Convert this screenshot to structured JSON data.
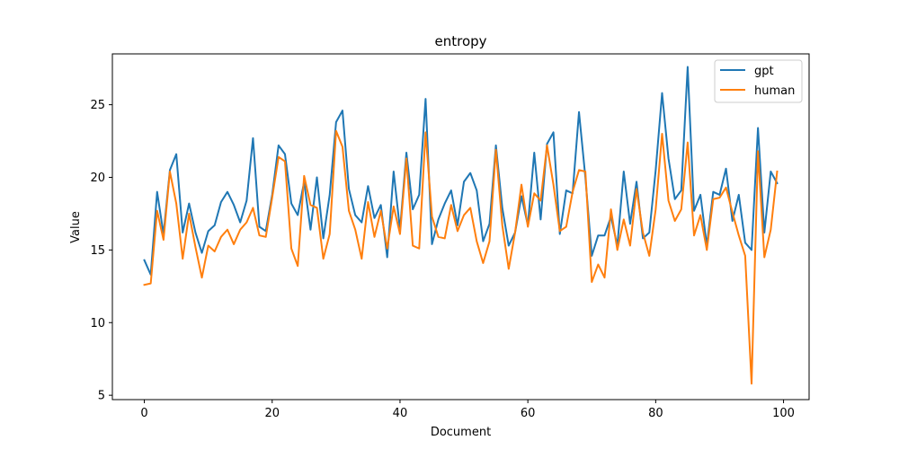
{
  "chart_data": {
    "type": "line",
    "title": "entropy",
    "xlabel": "Document",
    "ylabel": "Value",
    "xlim": [
      -5,
      104
    ],
    "ylim": [
      4.7,
      28.5
    ],
    "xticks": [
      0,
      20,
      40,
      60,
      80,
      100
    ],
    "yticks": [
      5,
      10,
      15,
      20,
      25
    ],
    "grid": false,
    "legend_position": "top-right",
    "x": [
      0,
      1,
      2,
      3,
      4,
      5,
      6,
      7,
      8,
      9,
      10,
      11,
      12,
      13,
      14,
      15,
      16,
      17,
      18,
      19,
      20,
      21,
      22,
      23,
      24,
      25,
      26,
      27,
      28,
      29,
      30,
      31,
      32,
      33,
      34,
      35,
      36,
      37,
      38,
      39,
      40,
      41,
      42,
      43,
      44,
      45,
      46,
      47,
      48,
      49,
      50,
      51,
      52,
      53,
      54,
      55,
      56,
      57,
      58,
      59,
      60,
      61,
      62,
      63,
      64,
      65,
      66,
      67,
      68,
      69,
      70,
      71,
      72,
      73,
      74,
      75,
      76,
      77,
      78,
      79,
      80,
      81,
      82,
      83,
      84,
      85,
      86,
      87,
      88,
      89,
      90,
      91,
      92,
      93,
      94,
      95,
      96,
      97,
      98,
      99
    ],
    "series": [
      {
        "name": "gpt",
        "color": "#1f77b4",
        "values": [
          14.3,
          13.3,
          19.0,
          16.1,
          20.5,
          21.6,
          16.2,
          18.2,
          16.2,
          14.8,
          16.3,
          16.7,
          18.3,
          19.0,
          18.1,
          16.9,
          18.4,
          22.7,
          16.6,
          16.3,
          18.8,
          22.2,
          21.6,
          18.2,
          17.4,
          19.7,
          16.4,
          20.0,
          15.8,
          18.8,
          23.8,
          24.6,
          19.2,
          17.4,
          16.9,
          19.4,
          17.2,
          18.1,
          14.5,
          20.4,
          16.4,
          21.7,
          17.8,
          18.8,
          25.4,
          15.4,
          17.1,
          18.2,
          19.1,
          16.7,
          19.7,
          20.3,
          19.1,
          15.6,
          16.8,
          22.2,
          17.9,
          15.3,
          16.2,
          18.7,
          16.7,
          21.7,
          17.1,
          22.3,
          23.1,
          16.1,
          19.1,
          18.9,
          24.5,
          20.0,
          14.6,
          16.0,
          16.0,
          17.3,
          15.3,
          20.4,
          16.8,
          19.7,
          15.8,
          16.2,
          20.5,
          25.8,
          21.3,
          18.5,
          19.1,
          27.6,
          17.7,
          18.8,
          15.3,
          19.0,
          18.8,
          20.6,
          17.0,
          18.8,
          15.5,
          15.0,
          23.4,
          16.2,
          20.4,
          19.6
        ]
      },
      {
        "name": "human",
        "color": "#ff7f0e",
        "values": [
          12.6,
          12.7,
          17.7,
          15.7,
          20.4,
          18.2,
          14.4,
          17.5,
          15.2,
          13.1,
          15.3,
          14.9,
          15.9,
          16.4,
          15.4,
          16.4,
          16.9,
          17.9,
          16.0,
          15.9,
          18.6,
          21.4,
          21.1,
          15.1,
          13.9,
          20.1,
          18.1,
          17.9,
          14.4,
          16.1,
          23.2,
          22.1,
          17.7,
          16.4,
          14.4,
          18.3,
          15.9,
          17.7,
          15.1,
          18.0,
          16.1,
          21.3,
          15.3,
          15.1,
          23.1,
          17.3,
          15.9,
          15.8,
          18.1,
          16.3,
          17.4,
          17.9,
          15.6,
          14.1,
          15.6,
          21.9,
          16.7,
          13.7,
          16.2,
          19.5,
          16.6,
          18.9,
          18.4,
          22.2,
          19.5,
          16.3,
          16.6,
          19.0,
          20.5,
          20.4,
          12.8,
          14.0,
          13.1,
          17.8,
          15.0,
          17.1,
          15.3,
          19.2,
          16.2,
          14.6,
          17.8,
          23.0,
          18.4,
          17.0,
          17.8,
          22.4,
          16.0,
          17.4,
          15.0,
          18.5,
          18.6,
          19.3,
          17.6,
          16.0,
          14.6,
          5.8,
          21.8,
          14.5,
          16.4,
          20.4
        ]
      }
    ]
  }
}
